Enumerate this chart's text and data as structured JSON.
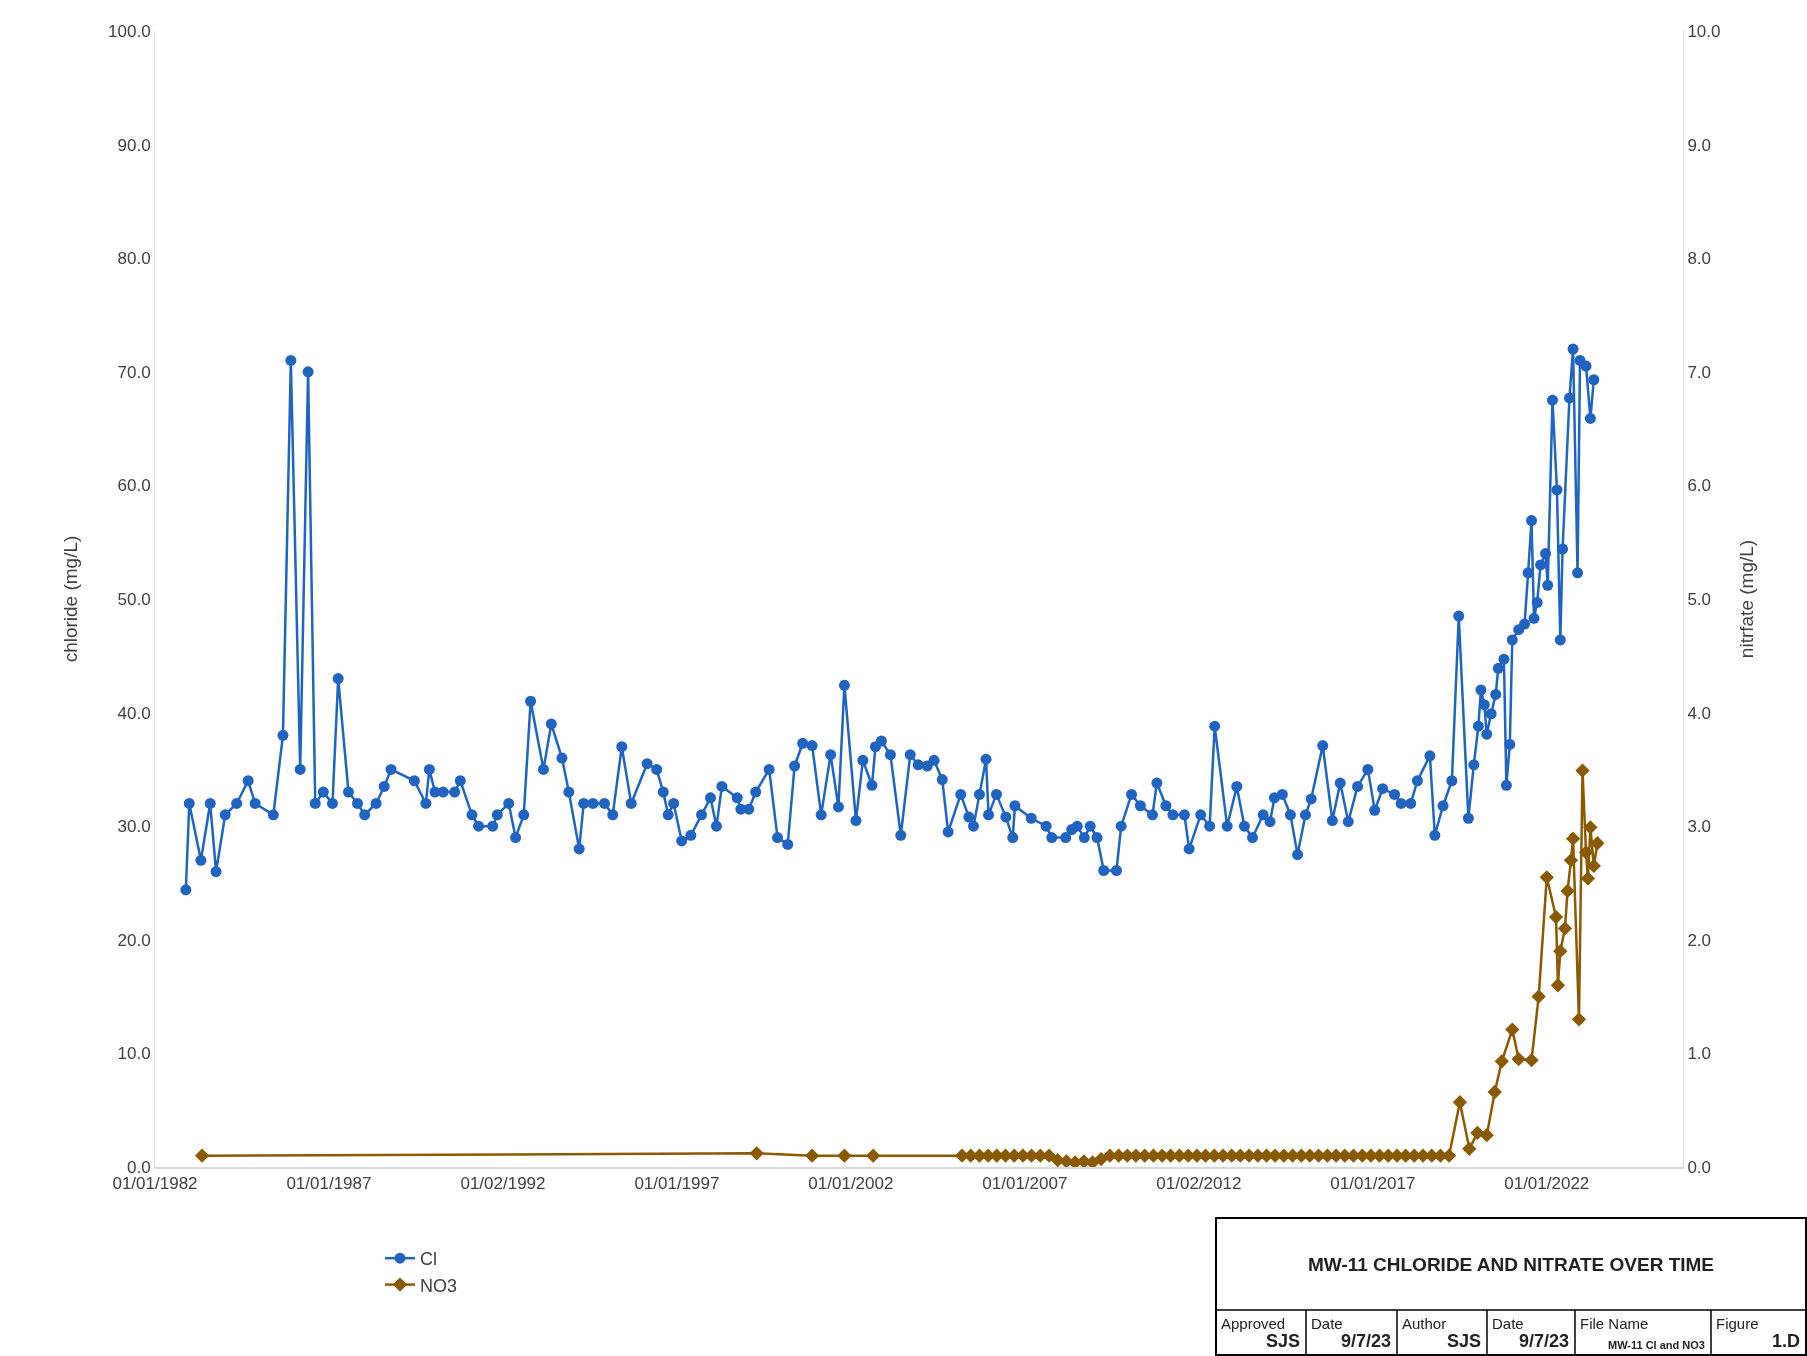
{
  "chart_data": {
    "type": "line",
    "title": "MW-11 CHLORIDE AND NITRATE OVER TIME",
    "ylabel": "chloride (mg/L)",
    "y2label": "nitrfate (mg/L)",
    "xlim": [
      "1982-01-01",
      "2025-12-01"
    ],
    "xticks": [
      {
        "value": "1982-01-01",
        "label": "01/01/1982"
      },
      {
        "value": "1987-01-01",
        "label": "01/01/1987"
      },
      {
        "value": "1992-01-02",
        "label": "01/02/1992"
      },
      {
        "value": "1997-01-01",
        "label": "01/01/1997"
      },
      {
        "value": "2002-01-01",
        "label": "01/01/2002"
      },
      {
        "value": "2007-01-01",
        "label": "01/01/2007"
      },
      {
        "value": "2012-01-02",
        "label": "01/02/2012"
      },
      {
        "value": "2017-01-01",
        "label": "01/01/2017"
      },
      {
        "value": "2022-01-01",
        "label": "01/01/2022"
      }
    ],
    "ylim": [
      0,
      100
    ],
    "yticks": [
      {
        "value": 0,
        "label": "0.0"
      },
      {
        "value": 10,
        "label": "10.0"
      },
      {
        "value": 20,
        "label": "20.0"
      },
      {
        "value": 30,
        "label": "30.0"
      },
      {
        "value": 40,
        "label": "40.0"
      },
      {
        "value": 50,
        "label": "50.0"
      },
      {
        "value": 60,
        "label": "60.0"
      },
      {
        "value": 70,
        "label": "70.0"
      },
      {
        "value": 80,
        "label": "80.0"
      },
      {
        "value": 90,
        "label": "90.0"
      },
      {
        "value": 100,
        "label": "100.0"
      }
    ],
    "y2lim": [
      0,
      10
    ],
    "y2ticks": [
      {
        "value": 0,
        "label": "0.0"
      },
      {
        "value": 1,
        "label": "1.0"
      },
      {
        "value": 2,
        "label": "2.0"
      },
      {
        "value": 3,
        "label": "3.0"
      },
      {
        "value": 4,
        "label": "4.0"
      },
      {
        "value": 5,
        "label": "5.0"
      },
      {
        "value": 6,
        "label": "6.0"
      },
      {
        "value": 7,
        "label": "7.0"
      },
      {
        "value": 8,
        "label": "8.0"
      },
      {
        "value": 9,
        "label": "9.0"
      },
      {
        "value": 10,
        "label": "10.0"
      }
    ],
    "grid": false,
    "legend": "bottom left",
    "line_style": "solid",
    "series": [
      {
        "name": "Cl",
        "color": "#1f64c0",
        "marker": "circle",
        "x": [
          "1982-11-21",
          "1982-12-27",
          "1983-04-28",
          "1983-08-03",
          "1983-10-04",
          "1984-01-08",
          "1984-05-07",
          "1984-09-05",
          "1984-11-17",
          "1985-05-27",
          "1985-09-05",
          "1985-11-27",
          "1986-03-05",
          "1986-05-27",
          "1986-08-10",
          "1986-11-03",
          "1987-02-07",
          "1987-04-08",
          "1987-07-25",
          "1987-10-28",
          "1988-01-11",
          "1988-05-10",
          "1988-08-03",
          "1988-10-14",
          "1989-06-16",
          "1989-10-14",
          "1989-11-20",
          "1990-01-18",
          "1990-04-14",
          "1990-08-13",
          "1990-10-11",
          "1991-02-10",
          "1991-04-21",
          "1991-09-16",
          "1991-11-03",
          "1992-03-02",
          "1992-05-13",
          "1992-08-07",
          "1992-10-18",
          "1993-03-02",
          "1993-05-23",
          "1993-09-12",
          "1993-11-23",
          "1994-03-12",
          "1994-04-28",
          "1994-08-03",
          "1994-12-02",
          "1995-02-27",
          "1995-06-02",
          "1995-09-09",
          "1996-02-23",
          "1996-06-02",
          "1996-08-10",
          "1996-10-01",
          "1996-11-27",
          "1997-02-20",
          "1997-05-27",
          "1997-09-16",
          "1997-12-19",
          "1998-02-20",
          "1998-04-18",
          "1998-09-26",
          "1998-11-03",
          "1999-01-25",
          "1999-04-08",
          "1999-08-27",
          "1999-11-23",
          "2000-03-09",
          "2000-05-20",
          "2000-08-13",
          "2000-11-20",
          "2001-02-23",
          "2001-06-02",
          "2001-08-23",
          "2001-10-25",
          "2002-02-23",
          "2002-05-07",
          "2002-08-10",
          "2002-09-16",
          "2002-11-17",
          "2003-02-20",
          "2003-06-09",
          "2003-09-16",
          "2003-12-09",
          "2004-03-12",
          "2004-05-23",
          "2004-08-17",
          "2004-10-18",
          "2005-02-27",
          "2005-05-23",
          "2005-07-11",
          "2005-09-12",
          "2005-11-20",
          "2005-12-16",
          "2006-03-09",
          "2006-06-16",
          "2006-08-27",
          "2006-09-19",
          "2007-03-09",
          "2007-08-13",
          "2007-10-11",
          "2008-03-05",
          "2008-05-07",
          "2008-07-04",
          "2008-09-16",
          "2008-11-17",
          "2009-01-28",
          "2009-04-08",
          "2009-08-20",
          "2009-10-08",
          "2010-01-25",
          "2010-04-28",
          "2010-09-02",
          "2010-10-18",
          "2011-01-21",
          "2011-04-04",
          "2011-08-03",
          "2011-09-22",
          "2012-01-21",
          "2012-04-24",
          "2012-06-16",
          "2012-10-25",
          "2013-02-03",
          "2013-04-24",
          "2013-07-18",
          "2013-11-07",
          "2014-01-18",
          "2014-03-05",
          "2014-05-27",
          "2014-08-20",
          "2014-11-03",
          "2015-01-25",
          "2015-03-26",
          "2015-07-25",
          "2015-11-03",
          "2016-01-25",
          "2016-04-18",
          "2016-07-25",
          "2016-11-10",
          "2017-01-21",
          "2017-04-14",
          "2017-08-17",
          "2017-10-25",
          "2018-02-03",
          "2018-04-14",
          "2018-08-23",
          "2018-10-14",
          "2019-01-08",
          "2019-04-11",
          "2019-06-22",
          "2019-10-01",
          "2019-11-27",
          "2020-01-14",
          "2020-02-10",
          "2020-03-16",
          "2020-04-11",
          "2020-05-27",
          "2020-07-14",
          "2020-08-10",
          "2020-10-08",
          "2020-11-03",
          "2020-12-09",
          "2021-01-04",
          "2021-03-12",
          "2021-05-13",
          "2021-06-19",
          "2021-07-25",
          "2021-08-20",
          "2021-09-22",
          "2021-10-28",
          "2021-12-19",
          "2022-01-11",
          "2022-03-02",
          "2022-04-18",
          "2022-05-23",
          "2022-06-16",
          "2022-08-27",
          "2022-10-04",
          "2022-11-20",
          "2022-12-16",
          "2023-02-17",
          "2023-04-04",
          "2023-05-10"
        ],
        "values": [
          24.4,
          32,
          27,
          32,
          26,
          31,
          32,
          34,
          32,
          31,
          38,
          71,
          35,
          70,
          32,
          33,
          32,
          43,
          33,
          32,
          31,
          32,
          33.5,
          35,
          34,
          32,
          35,
          33,
          33,
          33,
          34,
          31,
          30,
          30,
          31,
          32,
          29,
          31,
          41,
          35,
          39,
          36,
          33,
          28,
          32,
          32,
          32,
          31,
          37,
          32,
          35.5,
          35,
          33,
          31,
          32,
          28.7,
          29.2,
          31,
          32.5,
          30,
          33.5,
          32.5,
          31.5,
          31.5,
          33,
          35,
          29,
          28.4,
          35.3,
          37.3,
          37.1,
          31,
          36.3,
          31.7,
          42.4,
          30.5,
          35.8,
          33.6,
          37,
          37.5,
          36.3,
          29.2,
          36.3,
          35.4,
          35.3,
          35.8,
          34.1,
          29.5,
          32.8,
          30.8,
          30,
          32.8,
          35.9,
          31,
          32.8,
          30.8,
          29,
          31.8,
          30.7,
          30,
          29,
          29,
          29.7,
          30,
          29,
          30,
          29,
          26.1,
          26.1,
          30,
          32.8,
          31.8,
          31,
          33.8,
          31.8,
          31,
          31,
          28,
          31,
          30,
          38.8,
          30,
          33.5,
          30,
          29,
          31,
          30.4,
          32.5,
          32.8,
          31,
          27.5,
          31,
          32.4,
          37.1,
          30.5,
          33.8,
          30.4,
          33.5,
          35,
          31.4,
          33.3,
          32.8,
          32,
          32,
          34,
          36.2,
          29.2,
          31.8,
          34,
          48.5,
          30.7,
          35.4,
          38.8,
          42,
          40.7,
          38.1,
          39.9,
          41.6,
          43.9,
          44.7,
          33.6,
          37.2,
          46.4,
          47.3,
          47.8,
          52.3,
          56.9,
          48.3,
          49.7,
          53,
          54,
          51.2,
          67.5,
          59.6,
          46.4,
          54.4,
          67.7,
          72,
          52.3,
          71,
          70.5,
          65.9,
          69.3
        ]
      },
      {
        "name": "NO3",
        "color": "#8b5a00",
        "marker": "diamond",
        "axis": "y2",
        "x": [
          "1983-05-10",
          "1999-04-18",
          "2000-11-20",
          "2001-10-25",
          "2002-08-23",
          "2005-03-12",
          "2005-06-12",
          "2005-09-12",
          "2005-12-12",
          "2006-03-12",
          "2006-06-12",
          "2006-09-12",
          "2006-12-12",
          "2007-03-12",
          "2007-06-12",
          "2007-09-12",
          "2007-12-12",
          "2008-03-12",
          "2008-06-12",
          "2008-09-12",
          "2008-12-12",
          "2009-03-12",
          "2009-06-12",
          "2009-09-12",
          "2009-12-12",
          "2010-03-12",
          "2010-06-12",
          "2010-09-12",
          "2010-12-12",
          "2011-03-12",
          "2011-06-12",
          "2011-09-12",
          "2011-12-12",
          "2012-03-12",
          "2012-06-12",
          "2012-09-12",
          "2012-12-12",
          "2013-03-12",
          "2013-06-12",
          "2013-09-12",
          "2013-12-12",
          "2014-03-12",
          "2014-06-12",
          "2014-09-12",
          "2014-12-12",
          "2015-03-12",
          "2015-06-12",
          "2015-09-12",
          "2015-12-12",
          "2016-03-12",
          "2016-06-12",
          "2016-09-12",
          "2016-12-12",
          "2017-03-12",
          "2017-06-12",
          "2017-09-12",
          "2017-12-12",
          "2018-03-12",
          "2018-06-12",
          "2018-09-12",
          "2018-12-12",
          "2019-03-12",
          "2019-07-04",
          "2019-10-11",
          "2020-01-04",
          "2020-04-11",
          "2020-07-04",
          "2020-09-16",
          "2021-01-04",
          "2021-03-12",
          "2021-07-25",
          "2021-10-08",
          "2022-01-01",
          "2022-04-08",
          "2022-04-28",
          "2022-05-23",
          "2022-07-11",
          "2022-08-07",
          "2022-09-12",
          "2022-10-04",
          "2022-12-05",
          "2023-01-11",
          "2023-02-17",
          "2023-03-09",
          "2023-04-04",
          "2023-05-10",
          "2023-06-16"
        ],
        "values": [
          0.1,
          0.12,
          0.1,
          0.1,
          0.1,
          0.1,
          0.1,
          0.1,
          0.1,
          0.1,
          0.1,
          0.1,
          0.1,
          0.1,
          0.1,
          0.1,
          0.06,
          0.05,
          0.04,
          0.05,
          0.04,
          0.07,
          0.1,
          0.1,
          0.1,
          0.1,
          0.1,
          0.1,
          0.1,
          0.1,
          0.1,
          0.1,
          0.1,
          0.1,
          0.1,
          0.1,
          0.1,
          0.1,
          0.1,
          0.1,
          0.1,
          0.1,
          0.1,
          0.1,
          0.1,
          0.1,
          0.1,
          0.1,
          0.1,
          0.1,
          0.1,
          0.1,
          0.1,
          0.1,
          0.1,
          0.1,
          0.1,
          0.1,
          0.1,
          0.1,
          0.1,
          0.1,
          0.57,
          0.16,
          0.3,
          0.28,
          0.66,
          0.93,
          1.21,
          0.95,
          0.94,
          1.5,
          2.55,
          2.2,
          1.6,
          1.9,
          2.1,
          2.43,
          2.7,
          2.89,
          1.3,
          3.49,
          2.77,
          2.54,
          2.99,
          2.65,
          2.85
        ]
      }
    ],
    "annotations": [
      "Approved",
      "SJS",
      "Date",
      "9/7/23",
      "Author",
      "SJS",
      "Date",
      "9/7/23",
      "File Name",
      "MW-11 Cl and NO3",
      "Figure",
      "1.D"
    ]
  }
}
